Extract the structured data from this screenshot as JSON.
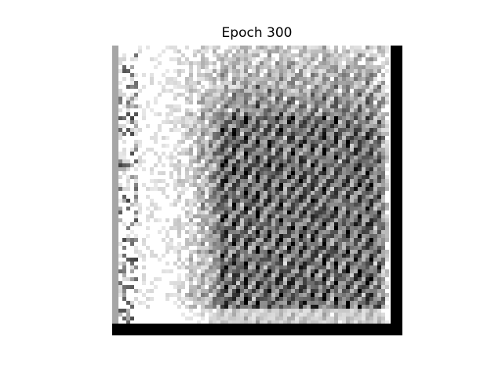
{
  "figure": {
    "title": "Epoch 300"
  },
  "image": {
    "kind": "generated grayscale sample",
    "palette": {
      "background": "#ffffff",
      "ink": "#000000"
    }
  }
}
